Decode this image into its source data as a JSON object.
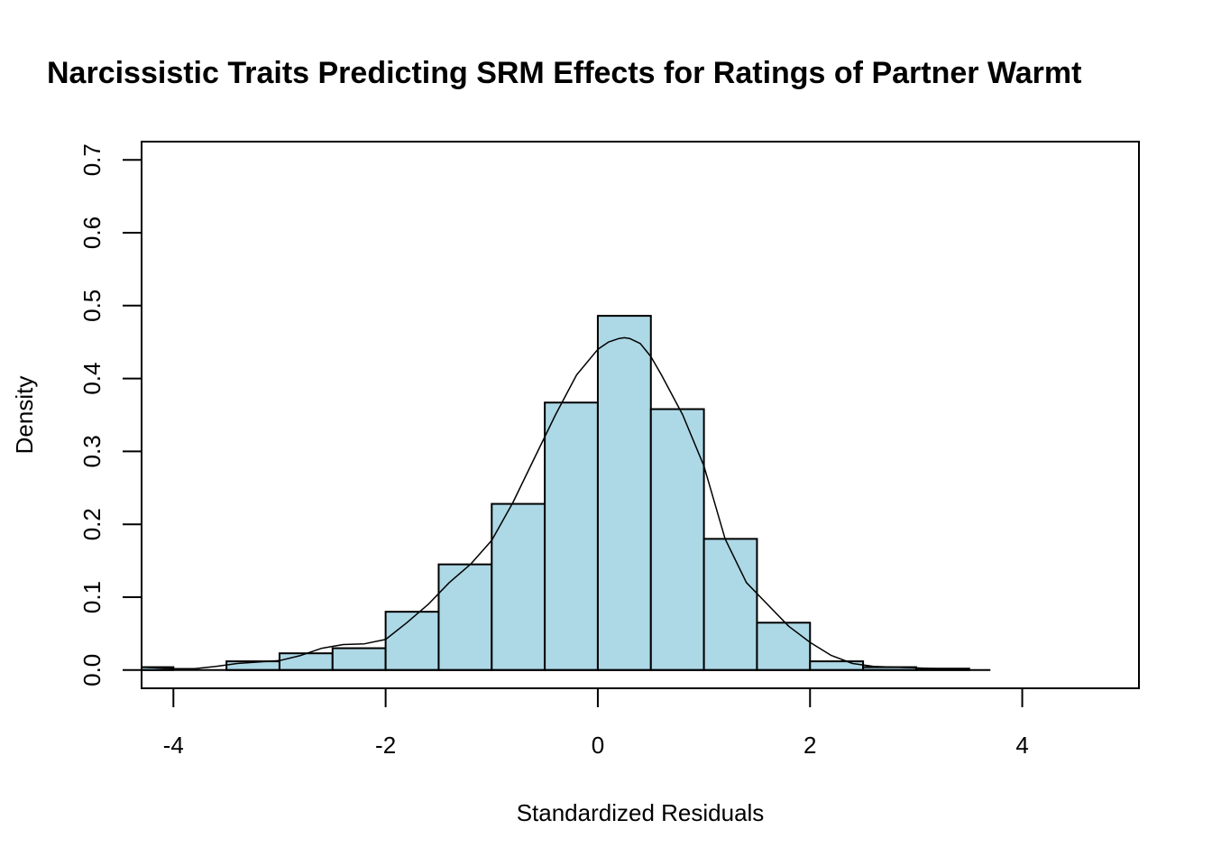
{
  "chart_data": {
    "type": "bar",
    "title": "Narcissistic Traits Predicting SRM Effects for Ratings of Partner Warmt",
    "xlabel": "Standardized Residuals",
    "ylabel": "Density",
    "xlim": [
      -4.3,
      5.1
    ],
    "ylim": [
      -0.025,
      0.725
    ],
    "x_ticks": [
      -4,
      -2,
      0,
      2,
      4
    ],
    "x_tick_labels": [
      "-4",
      "-2",
      "0",
      "2",
      "4"
    ],
    "y_ticks": [
      0.0,
      0.1,
      0.2,
      0.3,
      0.4,
      0.5,
      0.6,
      0.7
    ],
    "y_tick_labels": [
      "0.0",
      "0.1",
      "0.2",
      "0.3",
      "0.4",
      "0.5",
      "0.6",
      "0.7"
    ],
    "grid": false,
    "bar_color": "#add8e6",
    "baseline_range": [
      -4.3,
      3.7
    ],
    "histogram": [
      {
        "x0": -4.5,
        "x1": -4.0,
        "density": 0.004
      },
      {
        "x0": -4.0,
        "x1": -3.5,
        "density": 0.0
      },
      {
        "x0": -3.5,
        "x1": -3.0,
        "density": 0.012
      },
      {
        "x0": -3.0,
        "x1": -2.5,
        "density": 0.023
      },
      {
        "x0": -2.5,
        "x1": -2.0,
        "density": 0.03
      },
      {
        "x0": -2.0,
        "x1": -1.5,
        "density": 0.08
      },
      {
        "x0": -1.5,
        "x1": -1.0,
        "density": 0.145
      },
      {
        "x0": -1.0,
        "x1": -0.5,
        "density": 0.228
      },
      {
        "x0": -0.5,
        "x1": 0.0,
        "density": 0.367
      },
      {
        "x0": 0.0,
        "x1": 0.5,
        "density": 0.486
      },
      {
        "x0": 0.5,
        "x1": 1.0,
        "density": 0.358
      },
      {
        "x0": 1.0,
        "x1": 1.5,
        "density": 0.18
      },
      {
        "x0": 1.5,
        "x1": 2.0,
        "density": 0.065
      },
      {
        "x0": 2.0,
        "x1": 2.5,
        "density": 0.012
      },
      {
        "x0": 2.5,
        "x1": 3.0,
        "density": 0.004
      },
      {
        "x0": 3.0,
        "x1": 3.5,
        "density": 0.002
      }
    ],
    "density_curve": {
      "x": [
        -4.3,
        -4.0,
        -3.8,
        -3.6,
        -3.4,
        -3.2,
        -3.0,
        -2.8,
        -2.6,
        -2.4,
        -2.2,
        -2.0,
        -1.8,
        -1.6,
        -1.4,
        -1.2,
        -1.0,
        -0.8,
        -0.6,
        -0.4,
        -0.2,
        0.0,
        0.1,
        0.2,
        0.25,
        0.3,
        0.4,
        0.5,
        0.6,
        0.8,
        1.0,
        1.2,
        1.4,
        1.6,
        1.8,
        2.0,
        2.2,
        2.4,
        2.6,
        2.8,
        3.0,
        3.2,
        3.4,
        3.5
      ],
      "y": [
        0.004,
        0.002,
        0.002,
        0.005,
        0.009,
        0.011,
        0.013,
        0.02,
        0.03,
        0.035,
        0.036,
        0.042,
        0.065,
        0.09,
        0.12,
        0.145,
        0.178,
        0.23,
        0.29,
        0.35,
        0.405,
        0.44,
        0.45,
        0.455,
        0.456,
        0.455,
        0.448,
        0.43,
        0.405,
        0.35,
        0.28,
        0.18,
        0.12,
        0.09,
        0.06,
        0.038,
        0.02,
        0.009,
        0.005,
        0.004,
        0.003,
        0.002,
        0.002,
        0.002
      ]
    }
  }
}
